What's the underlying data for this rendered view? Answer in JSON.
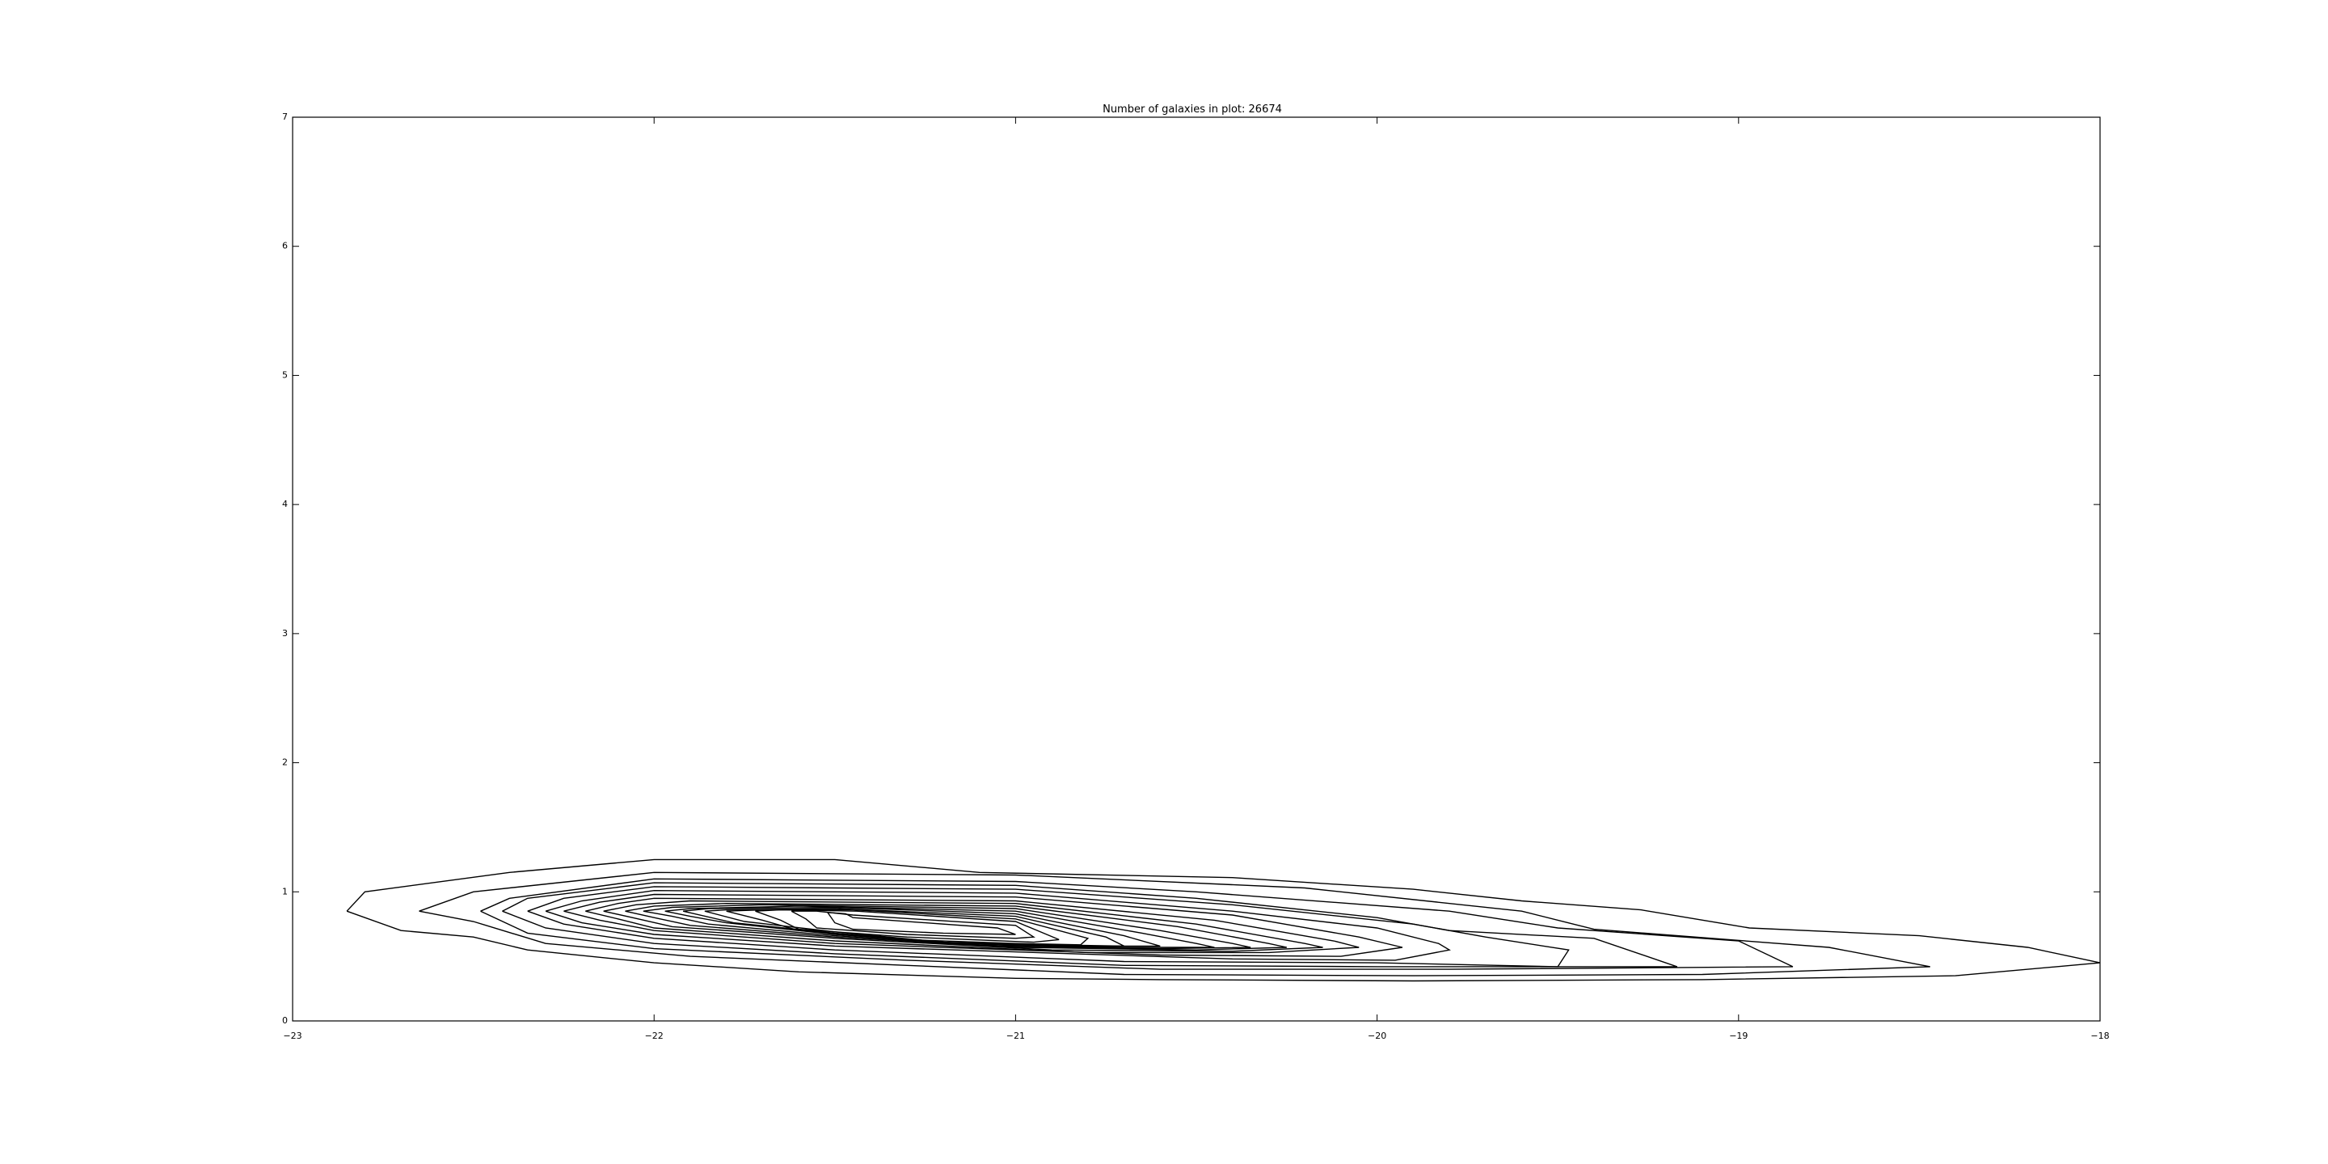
{
  "chart_data": {
    "type": "contour",
    "title": "Number of galaxies in plot: 26674",
    "xlabel": "",
    "ylabel": "",
    "xlim": [
      -23,
      -18
    ],
    "ylim": [
      0,
      7
    ],
    "x_ticks": [
      -23,
      -22,
      -21,
      -20,
      -19,
      -18
    ],
    "x_tick_labels": [
      "−23",
      "−22",
      "−21",
      "−20",
      "−19",
      "−18"
    ],
    "y_ticks": [
      0,
      1,
      2,
      3,
      4,
      5,
      6,
      7
    ],
    "y_tick_labels": [
      "0",
      "1",
      "2",
      "3",
      "4",
      "5",
      "6",
      "7"
    ],
    "grid": false,
    "line_color": "#000000",
    "contours": [
      [
        [
          -22.85,
          0.85
        ],
        [
          -22.8,
          1.0
        ],
        [
          -22.4,
          1.15
        ],
        [
          -22.0,
          1.25
        ],
        [
          -21.5,
          1.25
        ],
        [
          -21.1,
          1.15
        ],
        [
          -20.4,
          1.11
        ],
        [
          -19.9,
          1.02
        ],
        [
          -19.6,
          0.93
        ],
        [
          -19.27,
          0.86
        ],
        [
          -18.97,
          0.72
        ],
        [
          -18.5,
          0.66
        ],
        [
          -18.2,
          0.57
        ],
        [
          -18.0,
          0.45
        ],
        [
          -18.4,
          0.35
        ],
        [
          -19.1,
          0.32
        ],
        [
          -19.9,
          0.31
        ],
        [
          -20.6,
          0.32
        ],
        [
          -21.0,
          0.33
        ],
        [
          -21.6,
          0.38
        ],
        [
          -22.0,
          0.45
        ],
        [
          -22.35,
          0.55
        ],
        [
          -22.5,
          0.65
        ],
        [
          -22.7,
          0.7
        ],
        [
          -22.85,
          0.85
        ]
      ],
      [
        [
          -22.65,
          0.85
        ],
        [
          -22.5,
          1.0
        ],
        [
          -22.0,
          1.15
        ],
        [
          -21.0,
          1.13
        ],
        [
          -20.2,
          1.03
        ],
        [
          -19.6,
          0.85
        ],
        [
          -19.4,
          0.71
        ],
        [
          -18.75,
          0.57
        ],
        [
          -18.47,
          0.42
        ],
        [
          -19.1,
          0.36
        ],
        [
          -19.9,
          0.35
        ],
        [
          -20.7,
          0.36
        ],
        [
          -21.3,
          0.43
        ],
        [
          -21.9,
          0.5
        ],
        [
          -22.3,
          0.6
        ],
        [
          -22.5,
          0.77
        ],
        [
          -22.65,
          0.85
        ]
      ],
      [
        [
          -22.48,
          0.85
        ],
        [
          -22.4,
          0.95
        ],
        [
          -22.0,
          1.1
        ],
        [
          -21.0,
          1.08
        ],
        [
          -20.5,
          1.0
        ],
        [
          -19.8,
          0.85
        ],
        [
          -19.5,
          0.72
        ],
        [
          -19.0,
          0.62
        ],
        [
          -18.85,
          0.42
        ],
        [
          -19.8,
          0.4
        ],
        [
          -20.6,
          0.4
        ],
        [
          -21.3,
          0.47
        ],
        [
          -22.0,
          0.56
        ],
        [
          -22.35,
          0.68
        ],
        [
          -22.48,
          0.85
        ]
      ],
      [
        [
          -22.42,
          0.85
        ],
        [
          -22.35,
          0.95
        ],
        [
          -22.0,
          1.07
        ],
        [
          -21.0,
          1.05
        ],
        [
          -20.5,
          0.95
        ],
        [
          -20.0,
          0.8
        ],
        [
          -19.8,
          0.7
        ],
        [
          -19.4,
          0.64
        ],
        [
          -19.17,
          0.42
        ],
        [
          -20.0,
          0.42
        ],
        [
          -20.7,
          0.43
        ],
        [
          -21.5,
          0.52
        ],
        [
          -22.0,
          0.6
        ],
        [
          -22.3,
          0.72
        ],
        [
          -22.42,
          0.85
        ]
      ],
      [
        [
          -22.35,
          0.85
        ],
        [
          -22.25,
          0.95
        ],
        [
          -22.0,
          1.04
        ],
        [
          -21.0,
          1.02
        ],
        [
          -20.4,
          0.9
        ],
        [
          -19.9,
          0.75
        ],
        [
          -19.7,
          0.65
        ],
        [
          -19.47,
          0.55
        ],
        [
          -19.5,
          0.42
        ],
        [
          -20.0,
          0.45
        ],
        [
          -20.7,
          0.46
        ],
        [
          -21.5,
          0.55
        ],
        [
          -22.0,
          0.64
        ],
        [
          -22.25,
          0.75
        ],
        [
          -22.35,
          0.85
        ]
      ],
      [
        [
          -22.3,
          0.85
        ],
        [
          -22.2,
          0.93
        ],
        [
          -22.0,
          1.01
        ],
        [
          -21.0,
          0.99
        ],
        [
          -20.4,
          0.85
        ],
        [
          -20.0,
          0.72
        ],
        [
          -19.83,
          0.6
        ],
        [
          -19.8,
          0.55
        ],
        [
          -19.95,
          0.47
        ],
        [
          -20.4,
          0.48
        ],
        [
          -21.5,
          0.58
        ],
        [
          -22.0,
          0.67
        ],
        [
          -22.2,
          0.76
        ],
        [
          -22.3,
          0.85
        ]
      ],
      [
        [
          -22.25,
          0.85
        ],
        [
          -22.15,
          0.92
        ],
        [
          -22.0,
          0.98
        ],
        [
          -21.0,
          0.96
        ],
        [
          -20.4,
          0.82
        ],
        [
          -20.05,
          0.65
        ],
        [
          -19.93,
          0.57
        ],
        [
          -20.1,
          0.5
        ],
        [
          -20.6,
          0.51
        ],
        [
          -21.5,
          0.6
        ],
        [
          -22.0,
          0.7
        ],
        [
          -22.15,
          0.78
        ],
        [
          -22.25,
          0.85
        ]
      ],
      [
        [
          -22.19,
          0.85
        ],
        [
          -22.1,
          0.91
        ],
        [
          -22.0,
          0.95
        ],
        [
          -21.0,
          0.93
        ],
        [
          -20.45,
          0.78
        ],
        [
          -20.12,
          0.62
        ],
        [
          -20.05,
          0.57
        ],
        [
          -20.3,
          0.53
        ],
        [
          -20.8,
          0.53
        ],
        [
          -21.5,
          0.62
        ],
        [
          -22.0,
          0.72
        ],
        [
          -22.1,
          0.79
        ],
        [
          -22.19,
          0.85
        ]
      ],
      [
        [
          -22.14,
          0.85
        ],
        [
          -22.05,
          0.9
        ],
        [
          -21.9,
          0.93
        ],
        [
          -21.0,
          0.91
        ],
        [
          -20.5,
          0.75
        ],
        [
          -20.2,
          0.6
        ],
        [
          -20.15,
          0.57
        ],
        [
          -20.4,
          0.54
        ],
        [
          -20.9,
          0.55
        ],
        [
          -21.5,
          0.64
        ],
        [
          -21.95,
          0.73
        ],
        [
          -22.06,
          0.8
        ],
        [
          -22.14,
          0.85
        ]
      ],
      [
        [
          -22.08,
          0.85
        ],
        [
          -22.0,
          0.89
        ],
        [
          -21.8,
          0.91
        ],
        [
          -21.0,
          0.89
        ],
        [
          -20.55,
          0.73
        ],
        [
          -20.3,
          0.6
        ],
        [
          -20.25,
          0.57
        ],
        [
          -20.5,
          0.55
        ],
        [
          -21.0,
          0.57
        ],
        [
          -21.5,
          0.65
        ],
        [
          -21.9,
          0.74
        ],
        [
          -22.0,
          0.8
        ],
        [
          -22.08,
          0.85
        ]
      ],
      [
        [
          -22.03,
          0.85
        ],
        [
          -21.95,
          0.88
        ],
        [
          -21.7,
          0.9
        ],
        [
          -21.0,
          0.87
        ],
        [
          -20.6,
          0.7
        ],
        [
          -20.4,
          0.6
        ],
        [
          -20.35,
          0.57
        ],
        [
          -20.6,
          0.56
        ],
        [
          -21.05,
          0.58
        ],
        [
          -21.5,
          0.66
        ],
        [
          -21.85,
          0.75
        ],
        [
          -21.95,
          0.81
        ],
        [
          -22.03,
          0.85
        ]
      ],
      [
        [
          -21.97,
          0.85
        ],
        [
          -21.9,
          0.87
        ],
        [
          -21.6,
          0.89
        ],
        [
          -21.0,
          0.85
        ],
        [
          -20.65,
          0.68
        ],
        [
          -20.5,
          0.6
        ],
        [
          -20.45,
          0.57
        ],
        [
          -20.7,
          0.57
        ],
        [
          -21.1,
          0.59
        ],
        [
          -21.5,
          0.67
        ],
        [
          -21.8,
          0.76
        ],
        [
          -21.9,
          0.81
        ],
        [
          -21.97,
          0.85
        ]
      ],
      [
        [
          -21.92,
          0.85
        ],
        [
          -21.85,
          0.87
        ],
        [
          -21.5,
          0.88
        ],
        [
          -21.0,
          0.83
        ],
        [
          -20.7,
          0.66
        ],
        [
          -20.6,
          0.58
        ],
        [
          -20.8,
          0.58
        ],
        [
          -21.15,
          0.6
        ],
        [
          -21.5,
          0.68
        ],
        [
          -21.78,
          0.76
        ],
        [
          -21.92,
          0.85
        ]
      ],
      [
        [
          -21.86,
          0.85
        ],
        [
          -21.8,
          0.86
        ],
        [
          -21.5,
          0.87
        ],
        [
          -21.0,
          0.81
        ],
        [
          -20.75,
          0.65
        ],
        [
          -20.7,
          0.58
        ],
        [
          -20.9,
          0.59
        ],
        [
          -21.2,
          0.61
        ],
        [
          -21.5,
          0.69
        ],
        [
          -21.75,
          0.77
        ],
        [
          -21.86,
          0.85
        ]
      ],
      [
        [
          -21.8,
          0.85
        ],
        [
          -21.7,
          0.86
        ],
        [
          -21.45,
          0.86
        ],
        [
          -21.0,
          0.79
        ],
        [
          -20.8,
          0.64
        ],
        [
          -20.82,
          0.59
        ],
        [
          -21.0,
          0.6
        ],
        [
          -21.3,
          0.63
        ],
        [
          -21.6,
          0.7
        ],
        [
          -21.7,
          0.78
        ],
        [
          -21.8,
          0.85
        ]
      ],
      [
        [
          -21.72,
          0.85
        ],
        [
          -21.65,
          0.86
        ],
        [
          -21.44,
          0.85
        ],
        [
          -21.0,
          0.77
        ],
        [
          -20.88,
          0.63
        ],
        [
          -20.95,
          0.61
        ],
        [
          -21.3,
          0.65
        ],
        [
          -21.6,
          0.71
        ],
        [
          -21.65,
          0.78
        ],
        [
          -21.72,
          0.85
        ]
      ],
      [
        [
          -21.62,
          0.85
        ],
        [
          -21.55,
          0.85
        ],
        [
          -21.45,
          0.82
        ],
        [
          -21.0,
          0.74
        ],
        [
          -20.95,
          0.65
        ],
        [
          -21.0,
          0.64
        ],
        [
          -21.3,
          0.67
        ],
        [
          -21.55,
          0.72
        ],
        [
          -21.58,
          0.79
        ],
        [
          -21.62,
          0.85
        ]
      ],
      [
        [
          -21.52,
          0.84
        ],
        [
          -21.47,
          0.83
        ],
        [
          -21.45,
          0.8
        ],
        [
          -21.05,
          0.72
        ],
        [
          -21.0,
          0.67
        ],
        [
          -21.2,
          0.68
        ],
        [
          -21.45,
          0.71
        ],
        [
          -21.5,
          0.76
        ],
        [
          -21.52,
          0.84
        ]
      ]
    ]
  }
}
